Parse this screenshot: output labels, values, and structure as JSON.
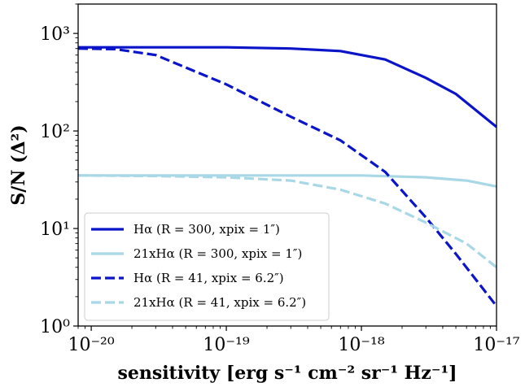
{
  "chart_data": {
    "type": "line",
    "xlabel": "sensitivity [erg s⁻¹ cm⁻² sr⁻¹ Hz⁻¹]",
    "ylabel": "S/N (Δ²)",
    "x_scale": "log",
    "y_scale": "log",
    "xlim": [
      8e-21,
      1e-17
    ],
    "ylim": [
      1,
      2000
    ],
    "x_ticks": [
      {
        "value": 1e-20,
        "label": "10⁻²⁰"
      },
      {
        "value": 1e-19,
        "label": "10⁻¹⁹"
      },
      {
        "value": 1e-18,
        "label": "10⁻¹⁸"
      },
      {
        "value": 1e-17,
        "label": "10⁻¹⁷"
      }
    ],
    "y_ticks": [
      {
        "value": 1,
        "label": "10⁰"
      },
      {
        "value": 10,
        "label": "10¹"
      },
      {
        "value": 100,
        "label": "10²"
      },
      {
        "value": 1000,
        "label": "10³"
      }
    ],
    "grid": false,
    "legend_position": "lower-left",
    "series": [
      {
        "name": "Hα (R = 300, xpix = 1″)",
        "color": "#0a14c8",
        "dash": "solid",
        "x": [
          8e-21,
          1e-20,
          3e-20,
          1e-19,
          3e-19,
          7e-19,
          1.5e-18,
          3e-18,
          5e-18,
          1e-17
        ],
        "y": [
          720,
          720,
          720,
          720,
          700,
          660,
          540,
          350,
          240,
          110
        ]
      },
      {
        "name": "21xHα (R = 300, xpix = 1″)",
        "color": "#a8d8e6",
        "dash": "solid",
        "x": [
          8e-21,
          1e-20,
          1e-19,
          1e-18,
          3e-18,
          6e-18,
          1e-17
        ],
        "y": [
          35,
          35,
          35,
          35,
          33.5,
          31,
          27
        ]
      },
      {
        "name": "Hα (R = 41, xpix = 6.2″)",
        "color": "#0a14c8",
        "dash": "dashed",
        "x": [
          8e-21,
          1.5e-20,
          3e-20,
          1e-19,
          3e-19,
          7e-19,
          1.5e-18,
          3e-18,
          5e-18,
          1e-17
        ],
        "y": [
          700,
          690,
          600,
          300,
          140,
          80,
          38,
          13,
          5.5,
          1.6
        ]
      },
      {
        "name": "21xHα (R = 41, xpix = 6.2″)",
        "color": "#a8d8e6",
        "dash": "dashed",
        "x": [
          8e-21,
          3e-20,
          1e-19,
          3e-19,
          7e-19,
          1.5e-18,
          3e-18,
          6e-18,
          1e-17
        ],
        "y": [
          35,
          34.5,
          33.5,
          31,
          25,
          18,
          11.5,
          7,
          4
        ]
      }
    ]
  }
}
